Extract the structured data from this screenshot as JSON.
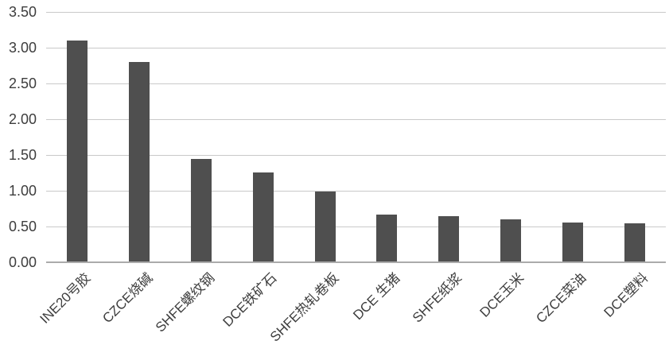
{
  "chart_data": {
    "type": "bar",
    "title": "",
    "xlabel": "",
    "ylabel": "",
    "categories": [
      "INE20号胶",
      "CZCE烧碱",
      "SHFE螺纹钢",
      "DCE铁矿石",
      "SHFE热轧卷板",
      "DCE 生猪",
      "SHFE纸浆",
      "DCE玉米",
      "CZCE菜油",
      "DCE塑料"
    ],
    "values": [
      3.1,
      2.8,
      1.45,
      1.26,
      0.99,
      0.67,
      0.65,
      0.6,
      0.56,
      0.54
    ],
    "ylim": [
      0,
      3.5
    ],
    "yticks": [
      "0.00",
      "0.50",
      "1.00",
      "1.50",
      "2.00",
      "2.50",
      "3.00",
      "3.50"
    ],
    "grid": true,
    "legend": false,
    "legend_position": "none"
  },
  "colors": {
    "background": "#ffffff",
    "bar": "#4f4f4f",
    "gridline": "#c9c9c9",
    "axis_line": "#ababab",
    "tick_text": "#3d3d3d"
  }
}
